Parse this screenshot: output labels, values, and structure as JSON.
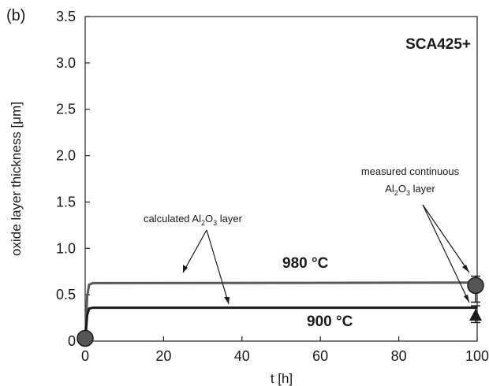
{
  "panel_label": "(b)",
  "material_label": "SCA425+",
  "annotations": {
    "calculated": {
      "prefix": "calculated Al",
      "sub1": "2",
      "mid": "O",
      "sub2": "3",
      "suffix": " layer"
    },
    "measured_line1": "measured continuous",
    "measured_line2": {
      "prefix": "Al",
      "sub1": "2",
      "mid": "O",
      "sub2": "3",
      "suffix": " layer"
    }
  },
  "chart_data": {
    "type": "line",
    "xlabel": "t [h]",
    "ylabel": "oxide layer thickness [μm]",
    "xlim": [
      0,
      100
    ],
    "ylim": [
      0,
      3.5
    ],
    "x_ticks": [
      "0",
      "20",
      "40",
      "60",
      "80",
      "100"
    ],
    "y_ticks": [
      "0",
      "0.5",
      "1.0",
      "1.5",
      "2.0",
      "2.5",
      "3.0",
      "3.5"
    ],
    "grid": false,
    "series": [
      {
        "name": "980 °C",
        "color": "#5a5a5a",
        "x": [
          0,
          0.5,
          1,
          2,
          100
        ],
        "y": [
          0,
          0.48,
          0.61,
          0.625,
          0.63
        ]
      },
      {
        "name": "900 °C",
        "color": "#1a1a1a",
        "x": [
          0,
          0.5,
          1,
          2,
          100
        ],
        "y": [
          0,
          0.28,
          0.35,
          0.36,
          0.36
        ]
      }
    ],
    "measured_points": [
      {
        "x": 0,
        "y": 0.03,
        "marker": "circle"
      },
      {
        "x": 99.6,
        "y": 0.6,
        "marker": "circle",
        "err_low": 0.42,
        "err_high": 0.7
      },
      {
        "x": 99.6,
        "y": 0.28,
        "marker": "triangle",
        "err_low": 0.2,
        "err_high": 0.38
      }
    ]
  }
}
